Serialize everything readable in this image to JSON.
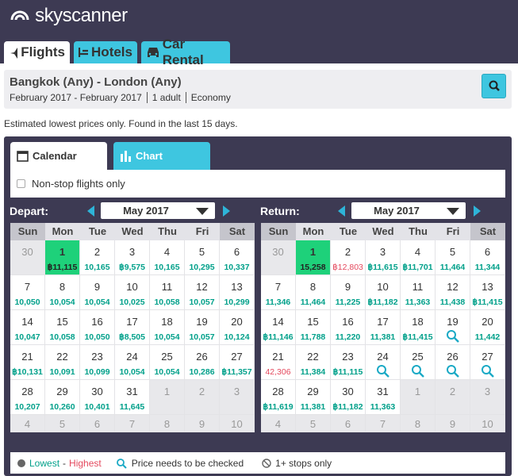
{
  "header": {
    "logo": "skyscanner",
    "tabs": [
      "Flights",
      "Hotels",
      "Car Rental"
    ]
  },
  "search": {
    "route": "Bangkok (Any) - London (Any)",
    "dates": "February 2017 - February 2017",
    "passengers": "1 adult",
    "cabin": "Economy"
  },
  "note": "Estimated lowest prices only. Found in the last 15 days.",
  "calendar": {
    "tabs": [
      "Calendar",
      "Chart"
    ],
    "nonstop": "Non-stop flights only",
    "weekdays": [
      "Sun",
      "Mon",
      "Tue",
      "Wed",
      "Thu",
      "Fri",
      "Sat"
    ],
    "depart": {
      "label": "Depart:",
      "month": "May 2017",
      "cells": [
        {
          "day": 30,
          "state": "muted"
        },
        {
          "day": 1,
          "price": "฿11,115",
          "state": "selected"
        },
        {
          "day": 2,
          "price": "10,165"
        },
        {
          "day": 3,
          "price": "฿9,575"
        },
        {
          "day": 4,
          "price": "10,165"
        },
        {
          "day": 5,
          "price": "10,295"
        },
        {
          "day": 6,
          "price": "10,337"
        },
        {
          "day": 7,
          "price": "10,050"
        },
        {
          "day": 8,
          "price": "10,054"
        },
        {
          "day": 9,
          "price": "10,054"
        },
        {
          "day": 10,
          "price": "10,025"
        },
        {
          "day": 11,
          "price": "10,058"
        },
        {
          "day": 12,
          "price": "10,057"
        },
        {
          "day": 13,
          "price": "10,299"
        },
        {
          "day": 14,
          "price": "10,047"
        },
        {
          "day": 15,
          "price": "10,058"
        },
        {
          "day": 16,
          "price": "10,050"
        },
        {
          "day": 17,
          "price": "฿8,505"
        },
        {
          "day": 18,
          "price": "10,054"
        },
        {
          "day": 19,
          "price": "10,057"
        },
        {
          "day": 20,
          "price": "10,124"
        },
        {
          "day": 21,
          "price": "฿10,131"
        },
        {
          "day": 22,
          "price": "10,091"
        },
        {
          "day": 23,
          "price": "10,099"
        },
        {
          "day": 24,
          "price": "10,054"
        },
        {
          "day": 25,
          "price": "10,054"
        },
        {
          "day": 26,
          "price": "10,286"
        },
        {
          "day": 27,
          "price": "฿11,357"
        },
        {
          "day": 28,
          "price": "10,207"
        },
        {
          "day": 29,
          "price": "10,260"
        },
        {
          "day": 30,
          "price": "10,401"
        },
        {
          "day": 31,
          "price": "11,645"
        },
        {
          "day": 1,
          "state": "muted"
        },
        {
          "day": 2,
          "state": "muted"
        },
        {
          "day": 3,
          "state": "muted"
        },
        {
          "day": 4,
          "state": "muted"
        },
        {
          "day": 5,
          "state": "muted"
        },
        {
          "day": 6,
          "state": "muted"
        },
        {
          "day": 7,
          "state": "muted"
        },
        {
          "day": 8,
          "state": "muted"
        },
        {
          "day": 9,
          "state": "muted"
        },
        {
          "day": 10,
          "state": "muted"
        }
      ]
    },
    "return": {
      "label": "Return:",
      "month": "May 2017",
      "cells": [
        {
          "day": 30,
          "state": "muted"
        },
        {
          "day": 1,
          "price": "15,258",
          "state": "selected"
        },
        {
          "day": 2,
          "price": "฿12,803",
          "state": "highest"
        },
        {
          "day": 3,
          "price": "฿11,615"
        },
        {
          "day": 4,
          "price": "฿11,701"
        },
        {
          "day": 5,
          "price": "11,464"
        },
        {
          "day": 6,
          "price": "11,344"
        },
        {
          "day": 7,
          "price": "11,346"
        },
        {
          "day": 8,
          "price": "11,464"
        },
        {
          "day": 9,
          "price": "11,225"
        },
        {
          "day": 10,
          "price": "฿11,182"
        },
        {
          "day": 11,
          "price": "11,363"
        },
        {
          "day": 12,
          "price": "11,438"
        },
        {
          "day": 13,
          "price": "฿11,415"
        },
        {
          "day": 14,
          "price": "฿11,146"
        },
        {
          "day": 15,
          "price": "11,788"
        },
        {
          "day": 16,
          "price": "11,220"
        },
        {
          "day": 17,
          "price": "11,381"
        },
        {
          "day": 18,
          "price": "฿11,415"
        },
        {
          "day": 19,
          "state": "check"
        },
        {
          "day": 20,
          "price": "11,442"
        },
        {
          "day": 21,
          "price": "42,306",
          "state": "highest"
        },
        {
          "day": 22,
          "price": "11,384"
        },
        {
          "day": 23,
          "price": "฿11,115"
        },
        {
          "day": 24,
          "state": "check"
        },
        {
          "day": 25,
          "state": "check"
        },
        {
          "day": 26,
          "state": "check"
        },
        {
          "day": 27,
          "state": "check"
        },
        {
          "day": 28,
          "price": "฿11,619"
        },
        {
          "day": 29,
          "price": "11,381"
        },
        {
          "day": 30,
          "price": "฿11,182"
        },
        {
          "day": 31,
          "price": "11,363"
        },
        {
          "day": 1,
          "state": "muted"
        },
        {
          "day": 2,
          "state": "muted"
        },
        {
          "day": 3,
          "state": "muted"
        },
        {
          "day": 4,
          "state": "muted"
        },
        {
          "day": 5,
          "state": "muted"
        },
        {
          "day": 6,
          "state": "muted"
        },
        {
          "day": 7,
          "state": "muted"
        },
        {
          "day": 8,
          "state": "muted"
        },
        {
          "day": 9,
          "state": "muted"
        },
        {
          "day": 10,
          "state": "muted"
        }
      ]
    }
  },
  "legend": {
    "lowest": "Lowest",
    "separator": "-",
    "highest": "Highest",
    "check": "Price needs to be checked",
    "stops": "1+ stops only"
  }
}
